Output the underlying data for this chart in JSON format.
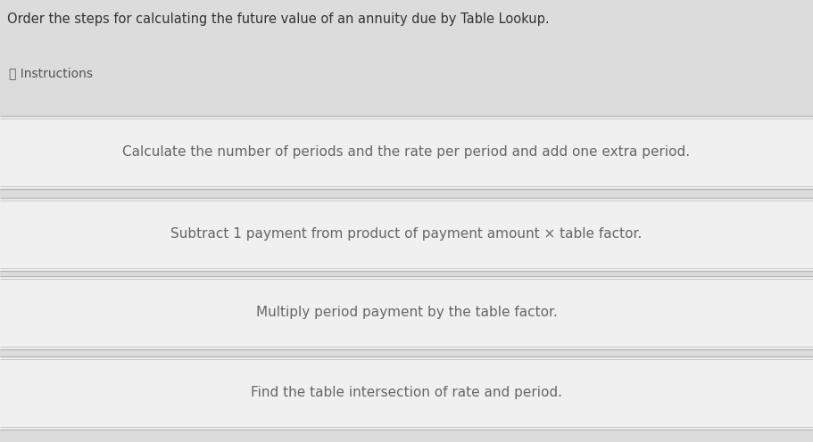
{
  "title": "Order the steps for calculating the future value of an annuity due by Table Lookup.",
  "instructions_label": "ⓘ Instructions",
  "steps": [
    "Calculate the number of periods and the rate per period and add one extra period.",
    "Subtract 1 payment from product of payment amount × table factor.",
    "Multiply period payment by the table factor.",
    "Find the table intersection of rate and period."
  ],
  "bg_color": "#dcdcdc",
  "box_bg_color": "#f0f0f0",
  "box_border_color": "#b8b8b8",
  "box_inner_line_color": "#c8c8c8",
  "title_color": "#333333",
  "instructions_color": "#555555",
  "step_color": "#666666",
  "title_fontsize": 10.5,
  "instructions_fontsize": 10,
  "step_fontsize": 11,
  "fig_width": 9.11,
  "fig_height": 4.96,
  "dpi": 100
}
